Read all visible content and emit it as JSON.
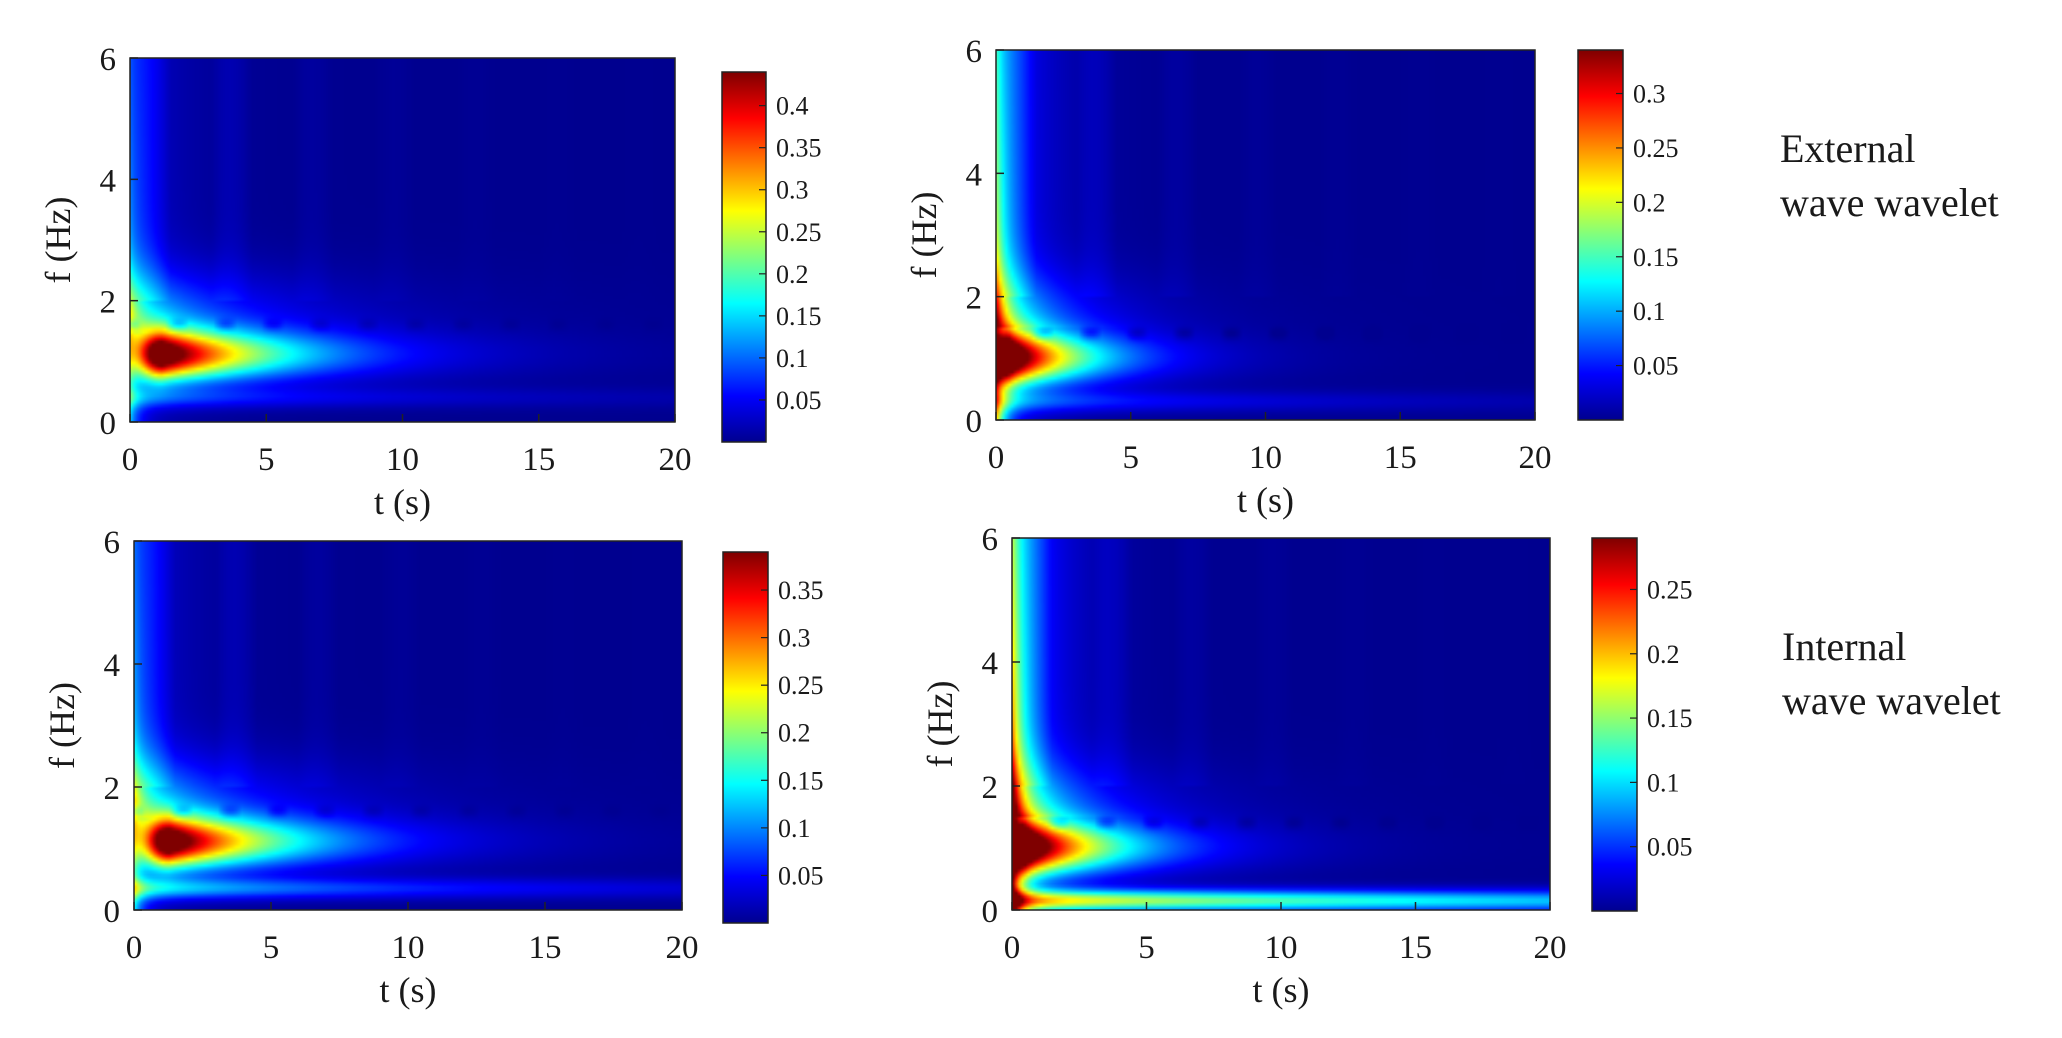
{
  "colors": {
    "jet": [
      "#00008f",
      "#0000ff",
      "#007fff",
      "#00ffff",
      "#7fff7f",
      "#ffff00",
      "#ff7f00",
      "#ff0000",
      "#7f0000"
    ],
    "background": "#ffffff",
    "axis": "#222222"
  },
  "row_labels": [
    {
      "line1": "External",
      "line2": "wave wavelet"
    },
    {
      "line1": "Internal",
      "line2": "wave wavelet"
    }
  ],
  "chart_data": [
    {
      "type": "heatmap",
      "panel": "top-left",
      "xlabel": "t (s)",
      "ylabel": "f (Hz)",
      "xlim": [
        0,
        20
      ],
      "ylim": [
        0,
        6
      ],
      "xticks": [
        "0",
        "5",
        "10",
        "15",
        "20"
      ],
      "yticks": [
        "0",
        "2",
        "4",
        "6"
      ],
      "colorbar": {
        "min": 0,
        "max": 0.44,
        "ticks": [
          "0.05",
          "0.1",
          "0.15",
          "0.2",
          "0.25",
          "0.3",
          "0.35",
          "0.4"
        ]
      },
      "peak": {
        "t": 1.2,
        "f": 1.1,
        "value": 0.44
      },
      "ridge_decay_s": 9,
      "low_band": {
        "f": 0.4,
        "value": 0.07,
        "decay_s": 12
      },
      "edge": {
        "value": 0.12
      },
      "bubbles_f": 1.6
    },
    {
      "type": "heatmap",
      "panel": "top-right",
      "xlabel": "t (s)",
      "ylabel": "f (Hz)",
      "xlim": [
        0,
        20
      ],
      "ylim": [
        0,
        6
      ],
      "xticks": [
        "0",
        "5",
        "10",
        "15",
        "20"
      ],
      "yticks": [
        "0",
        "2",
        "4",
        "6"
      ],
      "colorbar": {
        "min": 0,
        "max": 0.34,
        "ticks": [
          "0.05",
          "0.1",
          "0.15",
          "0.2",
          "0.25",
          "0.3"
        ]
      },
      "peak": {
        "t": 0.5,
        "f": 1.0,
        "value": 0.34
      },
      "ridge_decay_s": 6,
      "low_band": {
        "f": 0.3,
        "value": 0.06,
        "decay_s": 12
      },
      "edge": {
        "value": 0.2
      },
      "bubbles_f": 1.4
    },
    {
      "type": "heatmap",
      "panel": "bottom-left",
      "xlabel": "t (s)",
      "ylabel": "f (Hz)",
      "xlim": [
        0,
        20
      ],
      "ylim": [
        0,
        6
      ],
      "xticks": [
        "0",
        "5",
        "10",
        "15",
        "20"
      ],
      "yticks": [
        "0",
        "2",
        "4",
        "6"
      ],
      "colorbar": {
        "min": 0,
        "max": 0.39,
        "ticks": [
          "0.05",
          "0.1",
          "0.15",
          "0.2",
          "0.25",
          "0.3",
          "0.35"
        ]
      },
      "peak": {
        "t": 1.3,
        "f": 1.1,
        "value": 0.39
      },
      "ridge_decay_s": 9,
      "low_band": {
        "f": 0.35,
        "value": 0.12,
        "decay_s": 14
      },
      "edge": {
        "value": 0.12
      },
      "bubbles_f": 1.6
    },
    {
      "type": "heatmap",
      "panel": "bottom-right",
      "xlabel": "t (s)",
      "ylabel": "f (Hz)",
      "xlim": [
        0,
        20
      ],
      "ylim": [
        0,
        6
      ],
      "xticks": [
        "0",
        "5",
        "10",
        "15",
        "20"
      ],
      "yticks": [
        "0",
        "2",
        "4",
        "6"
      ],
      "colorbar": {
        "min": 0,
        "max": 0.29,
        "ticks": [
          "0.05",
          "0.1",
          "0.15",
          "0.2",
          "0.25"
        ]
      },
      "peak": {
        "t": 0.5,
        "f": 1.0,
        "value": 0.29
      },
      "ridge_decay_s": 7,
      "low_band": {
        "f": 0.15,
        "value": 0.18,
        "decay_s": 30
      },
      "edge": {
        "value": 0.22
      },
      "bubbles_f": 1.4
    }
  ]
}
